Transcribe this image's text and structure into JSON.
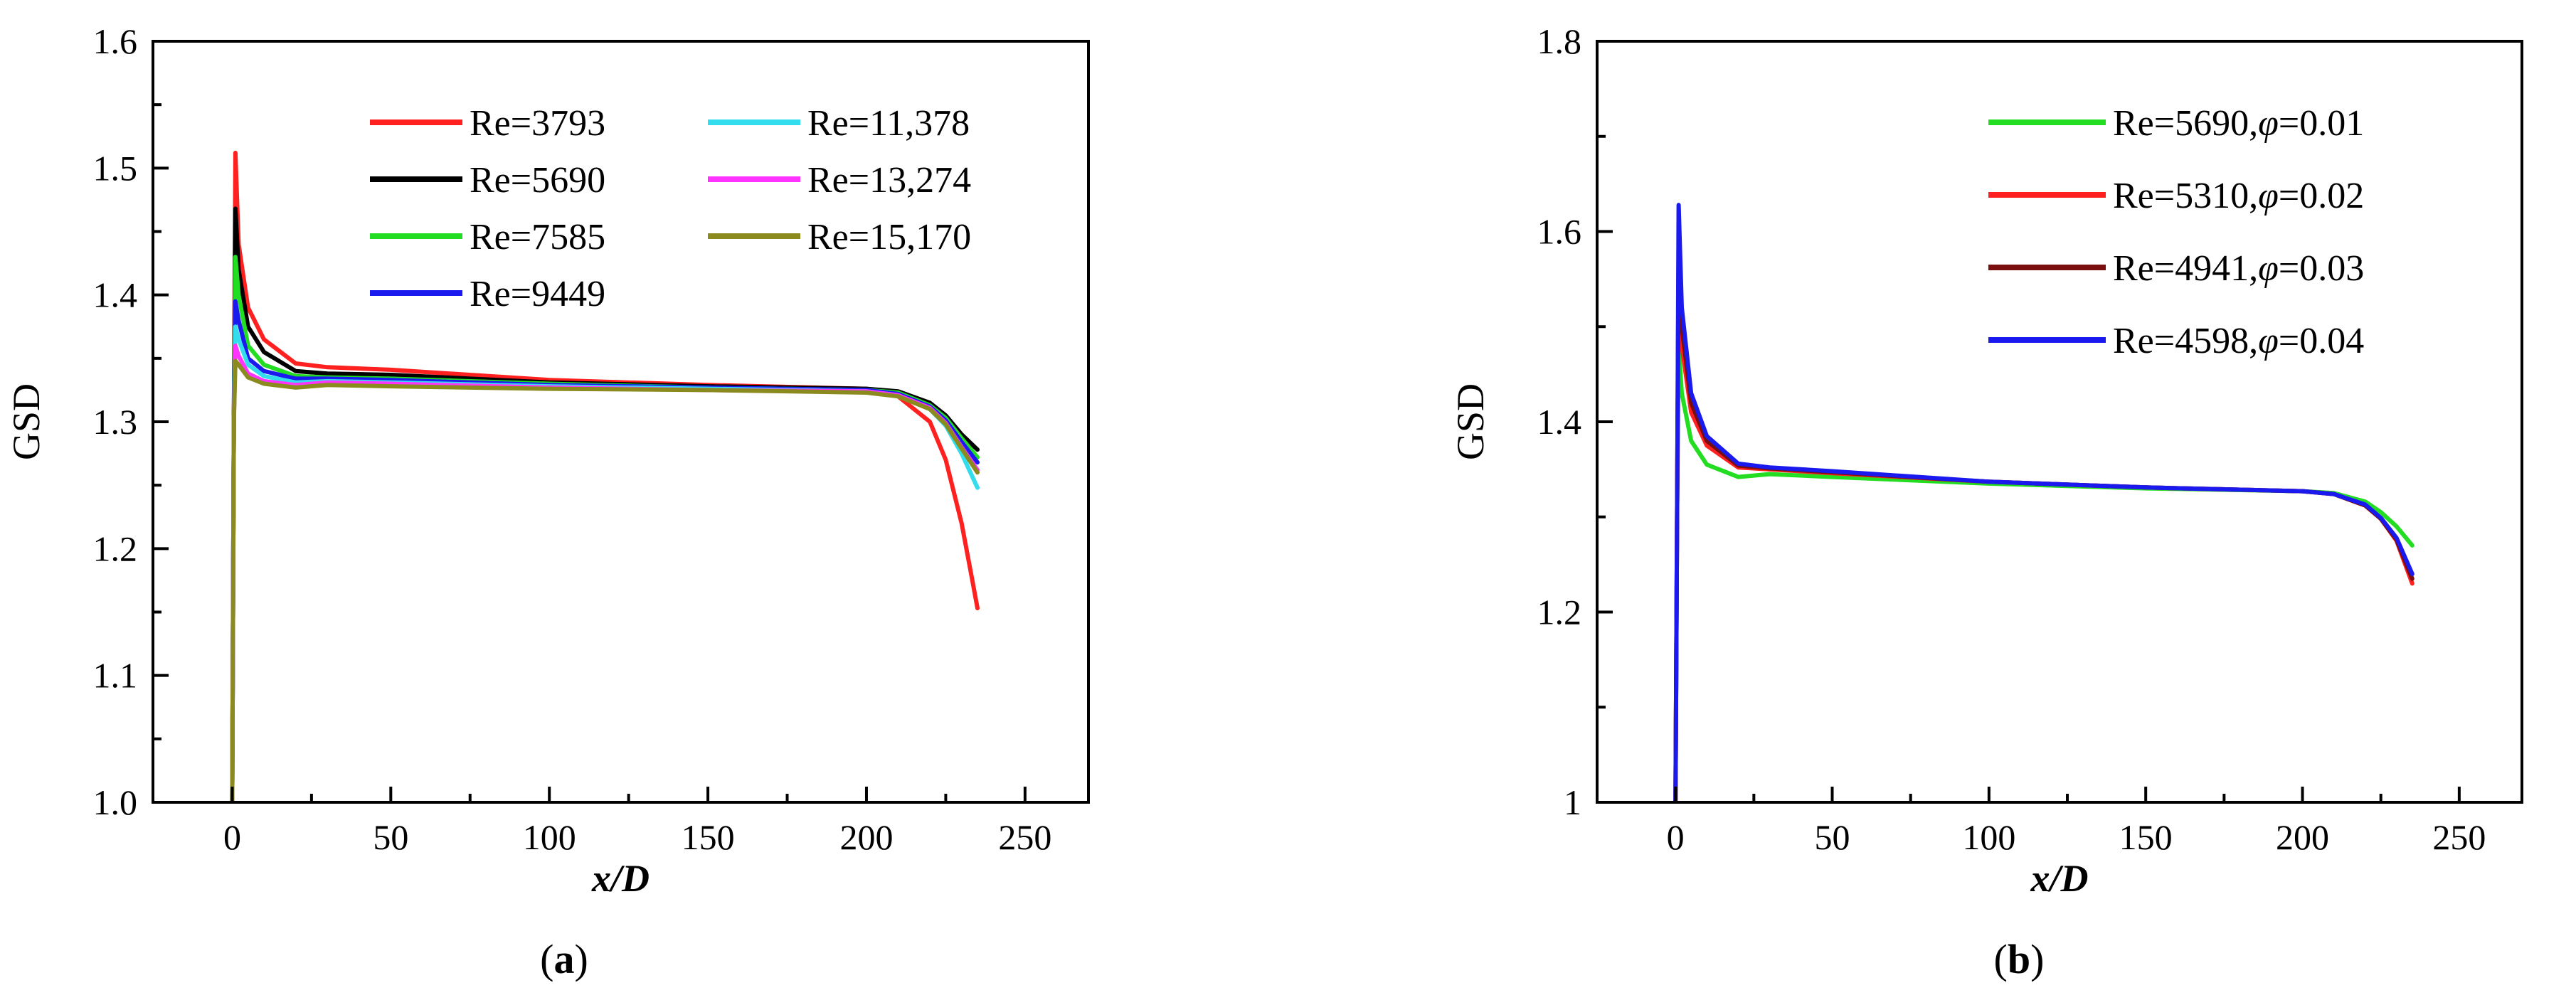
{
  "chart_data": [
    {
      "type": "line",
      "panel": "a",
      "caption_open": "(",
      "caption_letter": "a",
      "caption_close": ")",
      "xlabel": "x/D",
      "ylabel": "GSD",
      "xlim": [
        -25,
        270
      ],
      "ylim": [
        1.0,
        1.6
      ],
      "xticks": [
        0,
        50,
        100,
        150,
        200,
        250
      ],
      "yticks": [
        1.0,
        1.1,
        1.2,
        1.3,
        1.4,
        1.5,
        1.6
      ],
      "ytick_labels": [
        "1.0",
        "1.1",
        "1.2",
        "1.3",
        "1.4",
        "1.5",
        "1.6"
      ],
      "legend_position": "top-right",
      "series": [
        {
          "name": "Re=3793",
          "color": "#ff2020",
          "x": [
            0,
            0.5,
            1,
            2,
            5,
            10,
            20,
            30,
            50,
            100,
            150,
            200,
            210,
            220,
            225,
            230,
            233,
            235
          ],
          "y": [
            1.0,
            1.3,
            1.512,
            1.44,
            1.39,
            1.365,
            1.346,
            1.343,
            1.341,
            1.333,
            1.329,
            1.326,
            1.32,
            1.3,
            1.27,
            1.22,
            1.18,
            1.153
          ]
        },
        {
          "name": "Re=5690",
          "color": "#000000",
          "x": [
            0,
            0.5,
            1,
            2,
            5,
            10,
            20,
            30,
            50,
            100,
            150,
            200,
            210,
            220,
            225,
            230,
            235
          ],
          "y": [
            1.0,
            1.3,
            1.468,
            1.42,
            1.375,
            1.355,
            1.34,
            1.338,
            1.337,
            1.331,
            1.328,
            1.326,
            1.324,
            1.315,
            1.305,
            1.29,
            1.278
          ]
        },
        {
          "name": "Re=7585",
          "color": "#22dd22",
          "x": [
            0,
            0.5,
            1,
            2,
            5,
            10,
            20,
            30,
            50,
            100,
            150,
            200,
            210,
            220,
            225,
            230,
            235
          ],
          "y": [
            1.0,
            1.3,
            1.43,
            1.4,
            1.36,
            1.345,
            1.336,
            1.335,
            1.334,
            1.33,
            1.327,
            1.325,
            1.323,
            1.313,
            1.303,
            1.287,
            1.272
          ]
        },
        {
          "name": "Re=9449",
          "color": "#1a1aee",
          "x": [
            0,
            0.5,
            1,
            2,
            5,
            10,
            20,
            30,
            50,
            100,
            150,
            200,
            210,
            220,
            225,
            230,
            235
          ],
          "y": [
            1.0,
            1.3,
            1.395,
            1.38,
            1.35,
            1.34,
            1.334,
            1.334,
            1.333,
            1.329,
            1.327,
            1.325,
            1.322,
            1.312,
            1.301,
            1.284,
            1.268
          ]
        },
        {
          "name": "Re=11,378",
          "color": "#33ddee",
          "x": [
            0,
            0.5,
            1,
            2,
            5,
            10,
            20,
            30,
            50,
            100,
            150,
            200,
            210,
            220,
            225,
            230,
            235
          ],
          "y": [
            1.0,
            1.3,
            1.375,
            1.365,
            1.345,
            1.336,
            1.331,
            1.332,
            1.331,
            1.328,
            1.326,
            1.324,
            1.321,
            1.31,
            1.297,
            1.275,
            1.248
          ]
        },
        {
          "name": "Re=13,274",
          "color": "#ff33ff",
          "x": [
            0,
            0.5,
            1,
            2,
            5,
            10,
            20,
            30,
            50,
            100,
            150,
            200,
            210,
            220,
            225,
            230,
            235
          ],
          "y": [
            1.0,
            1.3,
            1.36,
            1.352,
            1.338,
            1.332,
            1.329,
            1.331,
            1.33,
            1.327,
            1.325,
            1.324,
            1.321,
            1.311,
            1.299,
            1.28,
            1.262
          ]
        },
        {
          "name": "Re=15,170",
          "color": "#8a8a1e",
          "x": [
            0,
            0.5,
            1,
            2,
            5,
            10,
            20,
            30,
            50,
            100,
            150,
            200,
            210,
            220,
            225,
            230,
            235
          ],
          "y": [
            1.0,
            1.3,
            1.348,
            1.345,
            1.335,
            1.33,
            1.327,
            1.329,
            1.328,
            1.326,
            1.325,
            1.323,
            1.32,
            1.31,
            1.298,
            1.279,
            1.26
          ]
        }
      ]
    },
    {
      "type": "line",
      "panel": "b",
      "caption_open": "(",
      "caption_letter": "b",
      "caption_close": ")",
      "xlabel": "x/D",
      "ylabel": "GSD",
      "xlim": [
        -25,
        270
      ],
      "ylim": [
        1.0,
        1.8
      ],
      "xticks": [
        0,
        50,
        100,
        150,
        200,
        250
      ],
      "yticks": [
        1.0,
        1.2,
        1.4,
        1.6,
        1.8
      ],
      "ytick_labels": [
        "1",
        "1.2",
        "1.4",
        "1.6",
        "1.8"
      ],
      "legend_position": "top-right",
      "series": [
        {
          "name": "Re=5690,",
          "phi_value": "=0.01",
          "color": "#22dd22",
          "x": [
            0,
            0.5,
            1,
            2,
            5,
            10,
            20,
            30,
            50,
            100,
            150,
            200,
            210,
            220,
            225,
            230,
            235
          ],
          "y": [
            1.0,
            1.3,
            1.48,
            1.43,
            1.38,
            1.355,
            1.342,
            1.345,
            1.342,
            1.335,
            1.33,
            1.327,
            1.325,
            1.316,
            1.305,
            1.29,
            1.27
          ]
        },
        {
          "name": "Re=5310,",
          "phi_value": "=0.02",
          "color": "#ff2020",
          "x": [
            0,
            0.5,
            1,
            2,
            5,
            10,
            20,
            30,
            50,
            100,
            150,
            200,
            210,
            220,
            225,
            230,
            235
          ],
          "y": [
            1.0,
            1.3,
            1.555,
            1.48,
            1.41,
            1.375,
            1.352,
            1.35,
            1.346,
            1.337,
            1.331,
            1.327,
            1.324,
            1.312,
            1.298,
            1.275,
            1.23
          ]
        },
        {
          "name": "Re=4941,",
          "phi_value": "=0.03",
          "color": "#7a0e0e",
          "x": [
            0,
            0.5,
            1,
            2,
            5,
            10,
            20,
            30,
            50,
            100,
            150,
            200,
            210,
            220,
            225,
            230,
            235
          ],
          "y": [
            1.0,
            1.3,
            1.58,
            1.5,
            1.42,
            1.38,
            1.354,
            1.351,
            1.347,
            1.337,
            1.331,
            1.327,
            1.324,
            1.312,
            1.298,
            1.276,
            1.235
          ]
        },
        {
          "name": "Re=4598,",
          "phi_value": "=0.04",
          "color": "#1a1aee",
          "x": [
            0,
            0.5,
            1,
            2,
            5,
            10,
            20,
            30,
            50,
            100,
            150,
            200,
            210,
            220,
            225,
            230,
            235
          ],
          "y": [
            1.0,
            1.3,
            1.628,
            1.52,
            1.43,
            1.385,
            1.356,
            1.352,
            1.348,
            1.337,
            1.331,
            1.327,
            1.324,
            1.313,
            1.299,
            1.278,
            1.24
          ]
        }
      ]
    }
  ],
  "legend_phi_symbol": "φ"
}
